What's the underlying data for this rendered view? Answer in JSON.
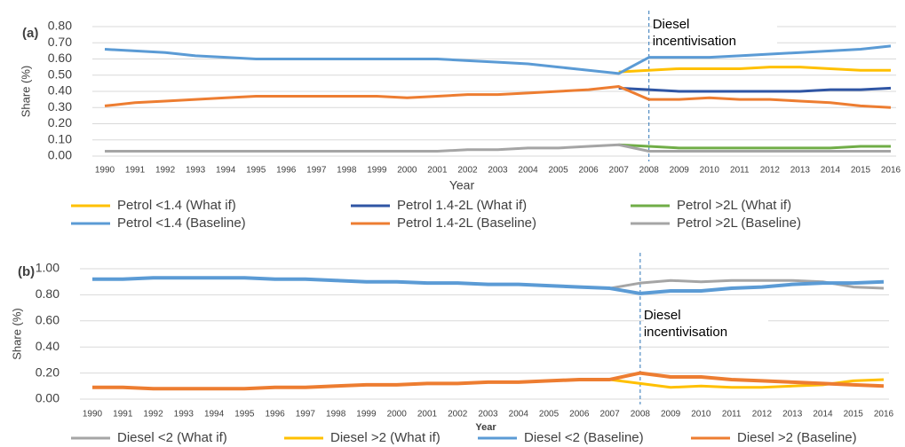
{
  "chart_data": [
    {
      "type": "line",
      "panel_label": "(a)",
      "y_label": "Share (%)",
      "x_label": "Year",
      "annotation": "Diesel incentivisation",
      "annotation_at": "2008",
      "categories": [
        "1990",
        "1991",
        "1992",
        "1993",
        "1994",
        "1995",
        "1996",
        "1997",
        "1998",
        "1999",
        "2000",
        "2001",
        "2002",
        "2003",
        "2004",
        "2005",
        "2006",
        "2007",
        "2008",
        "2009",
        "2010",
        "2011",
        "2012",
        "2013",
        "2014",
        "2015",
        "2016"
      ],
      "ylim": [
        0,
        0.8
      ],
      "yticks": [
        {
          "value": 0,
          "label": "0.00"
        },
        {
          "value": 0.1,
          "label": "0.10"
        },
        {
          "value": 0.2,
          "label": "0.20"
        },
        {
          "value": 0.3,
          "label": "0.30"
        },
        {
          "value": 0.4,
          "label": "0.40"
        },
        {
          "value": 0.5,
          "label": "0.50"
        },
        {
          "value": 0.6,
          "label": "0.60"
        },
        {
          "value": 0.7,
          "label": "0.70"
        },
        {
          "value": 0.8,
          "label": "0.80"
        }
      ],
      "grid": true,
      "series": [
        {
          "name": "Petrol <1.4 (What if)",
          "color": "#ffc000",
          "values": [
            null,
            null,
            null,
            null,
            null,
            null,
            null,
            null,
            null,
            null,
            null,
            null,
            null,
            null,
            null,
            null,
            null,
            0.52,
            0.53,
            0.54,
            0.54,
            0.54,
            0.55,
            0.55,
            0.54,
            0.53,
            0.53
          ]
        },
        {
          "name": "Petrol 1.4-2L (What if)",
          "color": "#2f55a4",
          "values": [
            null,
            null,
            null,
            null,
            null,
            null,
            null,
            null,
            null,
            null,
            null,
            null,
            null,
            null,
            null,
            null,
            null,
            0.42,
            0.41,
            0.4,
            0.4,
            0.4,
            0.4,
            0.4,
            0.41,
            0.41,
            0.42
          ]
        },
        {
          "name": "Petrol >2L (What if)",
          "color": "#70ad47",
          "values": [
            null,
            null,
            null,
            null,
            null,
            null,
            null,
            null,
            null,
            null,
            null,
            null,
            null,
            null,
            null,
            null,
            null,
            0.07,
            0.06,
            0.05,
            0.05,
            0.05,
            0.05,
            0.05,
            0.05,
            0.06,
            0.06
          ]
        },
        {
          "name": "Petrol <1.4 (Baseline)",
          "color": "#5b9bd5",
          "values": [
            0.66,
            0.65,
            0.64,
            0.62,
            0.61,
            0.6,
            0.6,
            0.6,
            0.6,
            0.6,
            0.6,
            0.6,
            0.59,
            0.58,
            0.57,
            0.55,
            0.53,
            0.51,
            0.61,
            0.61,
            0.61,
            0.62,
            0.63,
            0.64,
            0.65,
            0.66,
            0.68
          ]
        },
        {
          "name": "Petrol 1.4-2L (Baseline)",
          "color": "#ed7d31",
          "values": [
            0.31,
            0.33,
            0.34,
            0.35,
            0.36,
            0.37,
            0.37,
            0.37,
            0.37,
            0.37,
            0.36,
            0.37,
            0.38,
            0.38,
            0.39,
            0.4,
            0.41,
            0.43,
            0.35,
            0.35,
            0.36,
            0.35,
            0.35,
            0.34,
            0.33,
            0.31,
            0.3
          ]
        },
        {
          "name": "Petrol >2L (Baseline)",
          "color": "#a5a5a5",
          "values": [
            0.03,
            0.03,
            0.03,
            0.03,
            0.03,
            0.03,
            0.03,
            0.03,
            0.03,
            0.03,
            0.03,
            0.03,
            0.04,
            0.04,
            0.05,
            0.05,
            0.06,
            0.07,
            0.03,
            0.03,
            0.03,
            0.03,
            0.03,
            0.03,
            0.03,
            0.03,
            0.03
          ]
        }
      ]
    },
    {
      "type": "line",
      "panel_label": "(b)",
      "y_label": "Share (%)",
      "x_label": "Year",
      "annotation": "Diesel incentivisation",
      "annotation_at": "2008",
      "categories": [
        "1990",
        "1991",
        "1992",
        "1993",
        "1994",
        "1995",
        "1996",
        "1997",
        "1998",
        "1999",
        "2000",
        "2001",
        "2002",
        "2003",
        "2004",
        "2005",
        "2006",
        "2007",
        "2008",
        "2009",
        "2010",
        "2011",
        "2012",
        "2013",
        "2014",
        "2015",
        "2016"
      ],
      "ylim": [
        0,
        1
      ],
      "yticks": [
        {
          "value": 0,
          "label": "0.00"
        },
        {
          "value": 0.2,
          "label": "0.20"
        },
        {
          "value": 0.4,
          "label": "0.40"
        },
        {
          "value": 0.6,
          "label": "0.60"
        },
        {
          "value": 0.8,
          "label": "0.80"
        },
        {
          "value": 1,
          "label": "1.00"
        }
      ],
      "grid": true,
      "series": [
        {
          "name": "Diesel <2 (What if)",
          "color": "#a5a5a5",
          "values": [
            null,
            null,
            null,
            null,
            null,
            null,
            null,
            null,
            null,
            null,
            null,
            null,
            null,
            null,
            null,
            null,
            null,
            0.85,
            0.89,
            0.91,
            0.9,
            0.91,
            0.91,
            0.91,
            0.9,
            0.86,
            0.85
          ]
        },
        {
          "name": "Diesel >2 (What if)",
          "color": "#ffc000",
          "values": [
            null,
            null,
            null,
            null,
            null,
            null,
            null,
            null,
            null,
            null,
            null,
            null,
            null,
            null,
            null,
            null,
            null,
            0.15,
            0.12,
            0.09,
            0.1,
            0.09,
            0.09,
            0.1,
            0.11,
            0.14,
            0.15
          ]
        },
        {
          "name": "Diesel <2 (Baseline)",
          "color": "#5b9bd5",
          "values": [
            0.92,
            0.92,
            0.93,
            0.93,
            0.93,
            0.93,
            0.92,
            0.92,
            0.91,
            0.9,
            0.9,
            0.89,
            0.89,
            0.88,
            0.88,
            0.87,
            0.86,
            0.85,
            0.81,
            0.83,
            0.83,
            0.85,
            0.86,
            0.88,
            0.89,
            0.89,
            0.9
          ]
        },
        {
          "name": "Diesel >2 (Baseline)",
          "color": "#ed7d31",
          "values": [
            0.09,
            0.09,
            0.08,
            0.08,
            0.08,
            0.08,
            0.09,
            0.09,
            0.1,
            0.11,
            0.11,
            0.12,
            0.12,
            0.13,
            0.13,
            0.14,
            0.15,
            0.15,
            0.2,
            0.17,
            0.17,
            0.15,
            0.14,
            0.13,
            0.12,
            0.11,
            0.1
          ]
        }
      ]
    }
  ]
}
